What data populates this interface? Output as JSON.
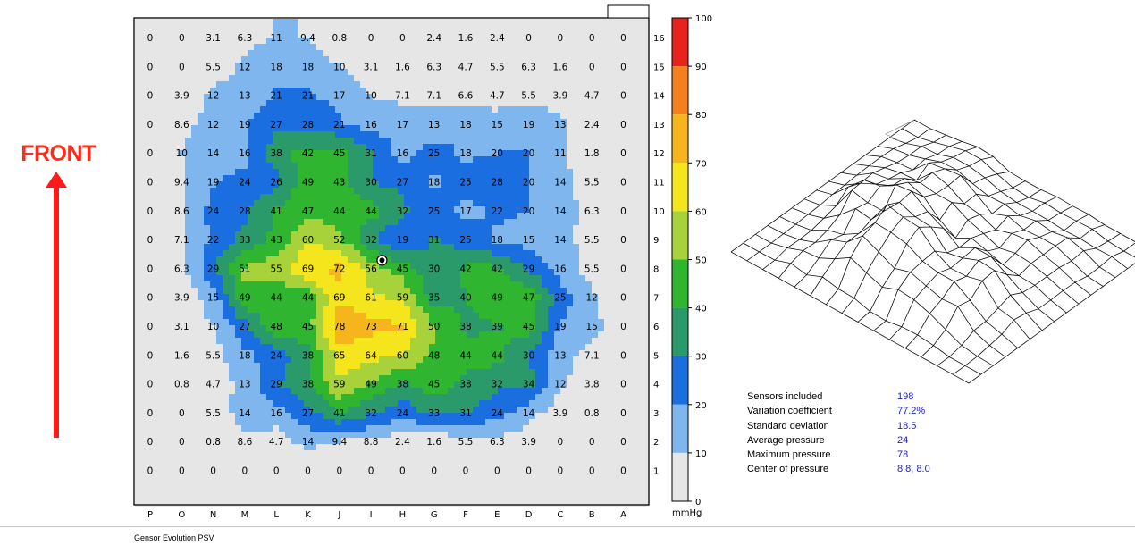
{
  "front_label": "FRONT",
  "unit": "mmHg",
  "status_text": "Gensor Evolution PSV",
  "column_labels": [
    "P",
    "O",
    "N",
    "M",
    "L",
    "K",
    "J",
    "I",
    "H",
    "G",
    "F",
    "E",
    "D",
    "C",
    "B",
    "A"
  ],
  "row_labels": [
    "16",
    "15",
    "14",
    "13",
    "12",
    "11",
    "10",
    "9",
    "8",
    "7",
    "6",
    "5",
    "4",
    "3",
    "2",
    "1"
  ],
  "grid_values": [
    [
      "0",
      "0",
      "3.1",
      "6.3",
      "11",
      "9.4",
      "0.8",
      "0",
      "0",
      "2.4",
      "1.6",
      "2.4",
      "0",
      "0",
      "0",
      "0"
    ],
    [
      "0",
      "0",
      "5.5",
      "12",
      "18",
      "18",
      "10",
      "3.1",
      "1.6",
      "6.3",
      "4.7",
      "5.5",
      "6.3",
      "1.6",
      "0",
      "0"
    ],
    [
      "0",
      "3.9",
      "12",
      "13",
      "21",
      "21",
      "17",
      "10",
      "7.1",
      "7.1",
      "6.6",
      "4.7",
      "5.5",
      "3.9",
      "4.7",
      "0"
    ],
    [
      "0",
      "8.6",
      "12",
      "19",
      "27",
      "28",
      "21",
      "16",
      "17",
      "13",
      "18",
      "15",
      "19",
      "13",
      "2.4",
      "0"
    ],
    [
      "0",
      "10",
      "14",
      "16",
      "38",
      "42",
      "45",
      "31",
      "16",
      "25",
      "18",
      "20",
      "20",
      "11",
      "1.8",
      "0"
    ],
    [
      "0",
      "9.4",
      "19",
      "24",
      "26",
      "49",
      "43",
      "30",
      "27",
      "18",
      "25",
      "28",
      "20",
      "14",
      "5.5",
      "0"
    ],
    [
      "0",
      "8.6",
      "24",
      "28",
      "41",
      "47",
      "44",
      "44",
      "32",
      "25",
      "17",
      "22",
      "20",
      "14",
      "6.3",
      "0"
    ],
    [
      "0",
      "7.1",
      "22",
      "33",
      "43",
      "60",
      "52",
      "32",
      "19",
      "31",
      "25",
      "18",
      "15",
      "14",
      "5.5",
      "0"
    ],
    [
      "0",
      "6.3",
      "29",
      "51",
      "55",
      "69",
      "72",
      "56",
      "45",
      "30",
      "42",
      "42",
      "29",
      "16",
      "5.5",
      "0"
    ],
    [
      "0",
      "3.9",
      "15",
      "49",
      "44",
      "44",
      "69",
      "61",
      "59",
      "35",
      "40",
      "49",
      "47",
      "25",
      "12",
      "0"
    ],
    [
      "0",
      "3.1",
      "10",
      "27",
      "48",
      "45",
      "78",
      "73",
      "71",
      "50",
      "38",
      "39",
      "45",
      "19",
      "15",
      "0"
    ],
    [
      "0",
      "1.6",
      "5.5",
      "18",
      "24",
      "38",
      "65",
      "64",
      "60",
      "48",
      "44",
      "44",
      "30",
      "13",
      "7.1",
      "0"
    ],
    [
      "0",
      "0.8",
      "4.7",
      "13",
      "29",
      "38",
      "59",
      "49",
      "38",
      "45",
      "38",
      "32",
      "34",
      "12",
      "3.8",
      "0"
    ],
    [
      "0",
      "0",
      "5.5",
      "14",
      "16",
      "27",
      "41",
      "32",
      "24",
      "33",
      "31",
      "24",
      "14",
      "3.9",
      "0.8",
      "0"
    ],
    [
      "0",
      "0",
      "0.8",
      "8.6",
      "4.7",
      "14",
      "9.4",
      "8.8",
      "2.4",
      "1.6",
      "5.5",
      "6.3",
      "3.9",
      "0",
      "0",
      "0"
    ],
    [
      "0",
      "0",
      "0",
      "0",
      "0",
      "0",
      "0",
      "0",
      "0",
      "0",
      "0",
      "0",
      "0",
      "0",
      "0",
      "0"
    ]
  ],
  "scale": {
    "ticks": [
      "100",
      "90",
      "80",
      "70",
      "60",
      "50",
      "40",
      "30",
      "20",
      "10",
      "0"
    ],
    "colors": [
      "#e8221c",
      "#f47f1e",
      "#f6b41d",
      "#f4e51c",
      "#a7d23a",
      "#2fb52f",
      "#2a9a6a",
      "#1a6ee0",
      "#7fb6ee",
      "#e6e6e6"
    ]
  },
  "stats": [
    {
      "label": "Sensors included",
      "value": "198"
    },
    {
      "label": "Variation coefficient",
      "value": "77.2%"
    },
    {
      "label": "Standard deviation",
      "value": "18.5"
    },
    {
      "label": "Average pressure",
      "value": "24"
    },
    {
      "label": "Maximum pressure",
      "value": "78"
    },
    {
      "label": "Center of pressure",
      "value": "8.8, 8.0"
    }
  ],
  "center_marker": {
    "col": 7.35,
    "row": 7.72
  }
}
